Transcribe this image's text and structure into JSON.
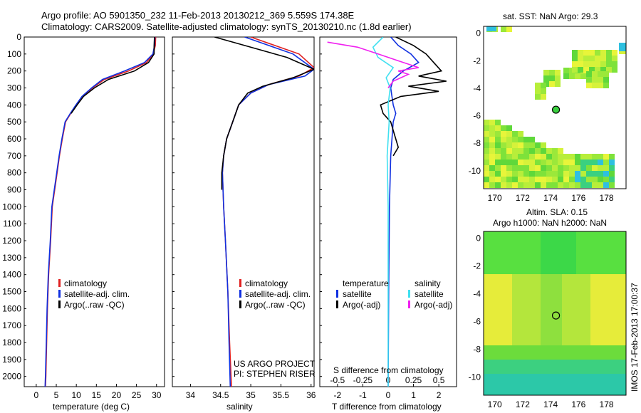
{
  "header": {
    "line1": "Argo profile: AO 5901350_232 11-Feb-2013 20130212_369 5.559S 174.38E",
    "line2": "Climatology: CARS2009. Satellite-adjusted climatology: synTS_20130210.nc (1.8d earlier)"
  },
  "colors": {
    "climatology": "#e02020",
    "satellite": "#1030e0",
    "argo": "#000000",
    "satellite_salinity": "#40e0f0",
    "argo_salinity": "#f020f0"
  },
  "chart_data": [
    {
      "type": "line",
      "panel": "temperature",
      "xlabel": "temperature (deg C)",
      "x_ticks": [
        0,
        5,
        10,
        15,
        20,
        25,
        30
      ],
      "xlim": [
        -3,
        32
      ],
      "ylim": [
        2060,
        0
      ],
      "y_ticks": [
        0,
        100,
        200,
        300,
        400,
        500,
        600,
        700,
        800,
        900,
        1000,
        1100,
        1200,
        1300,
        1400,
        1500,
        1600,
        1700,
        1800,
        1900,
        2000
      ],
      "legend": [
        "climatology",
        "satellite-adj. clim.",
        "Argo(..raw -QC)"
      ],
      "series": [
        {
          "name": "climatology",
          "color": "climatology",
          "x": [
            29.8,
            29.7,
            29.2,
            27.5,
            23.0,
            17.0,
            14.0,
            11.5,
            10.0,
            8.6,
            7.3,
            6.5,
            5.8,
            5.2,
            4.6,
            4.0,
            3.6,
            3.1,
            2.8,
            2.6,
            2.4,
            2.3
          ],
          "y": [
            0,
            50,
            100,
            150,
            200,
            250,
            300,
            350,
            400,
            450,
            500,
            600,
            700,
            800,
            900,
            1000,
            1200,
            1400,
            1600,
            1800,
            2000,
            2060
          ]
        },
        {
          "name": "satellite-adj. clim.",
          "color": "satellite",
          "x": [
            29.6,
            29.5,
            29.1,
            27.0,
            22.0,
            16.5,
            13.8,
            11.4,
            9.9,
            8.5,
            7.2,
            6.4,
            5.7,
            5.1,
            4.5,
            3.9,
            3.5,
            3.0,
            2.7,
            2.5,
            2.3,
            2.2
          ],
          "y": [
            0,
            50,
            100,
            150,
            200,
            250,
            300,
            350,
            400,
            450,
            500,
            600,
            700,
            800,
            900,
            1000,
            1200,
            1400,
            1600,
            1800,
            2000,
            2060
          ]
        },
        {
          "name": "Argo(..raw -QC)",
          "color": "argo",
          "x": [
            29.5,
            29.4,
            29.4,
            28.0,
            24.5,
            18.0,
            14.5,
            11.8,
            10.2,
            8.7
          ],
          "y": [
            0,
            50,
            100,
            150,
            200,
            250,
            300,
            350,
            400,
            450
          ]
        }
      ]
    },
    {
      "type": "line",
      "panel": "salinity",
      "xlabel": "salinity",
      "x_ticks": [
        34,
        34.5,
        35,
        35.5,
        36
      ],
      "xlim": [
        33.7,
        36.05
      ],
      "ylim": [
        2060,
        0
      ],
      "legend": [
        "climatology",
        "satellite-adj. clim.",
        "Argo(..raw -QC)"
      ],
      "annotation": [
        "US ARGO PROJECT",
        "PI: STEPHEN RISER"
      ],
      "series": [
        {
          "name": "climatology",
          "color": "climatology",
          "x": [
            35.0,
            35.4,
            35.8,
            36.05,
            35.8,
            35.3,
            35.0,
            34.8,
            34.7,
            34.6,
            34.55,
            34.53,
            34.55,
            34.58,
            34.62,
            34.65,
            34.68
          ],
          "y": [
            0,
            50,
            100,
            180,
            230,
            280,
            330,
            400,
            500,
            600,
            700,
            800,
            1000,
            1200,
            1500,
            1800,
            2060
          ]
        },
        {
          "name": "satellite-adj. clim.",
          "color": "satellite",
          "x": [
            34.9,
            35.3,
            35.7,
            36.05,
            35.9,
            35.3,
            35.0,
            34.8,
            34.7,
            34.6,
            34.55,
            34.53,
            34.55,
            34.58,
            34.62,
            34.64,
            34.66
          ],
          "y": [
            0,
            50,
            100,
            190,
            230,
            280,
            330,
            400,
            500,
            600,
            700,
            800,
            1000,
            1200,
            1500,
            1800,
            2060
          ]
        },
        {
          "name": "Argo(..raw -QC)",
          "color": "argo",
          "x": [
            34.4,
            34.9,
            35.6,
            36.05,
            35.7,
            35.2,
            34.95,
            34.8,
            34.7,
            34.6,
            34.55,
            34.52,
            34.52
          ],
          "y": [
            0,
            50,
            120,
            190,
            240,
            290,
            330,
            400,
            500,
            600,
            700,
            800,
            900
          ]
        }
      ]
    },
    {
      "type": "line",
      "panel": "difference",
      "xlabel": "T difference from climatology",
      "top_label": "S difference from climatology",
      "x_ticks": [
        -2,
        -1,
        0,
        1,
        2
      ],
      "top_ticks": [
        "-0.5",
        "-0.25",
        "0",
        "0.25",
        "0.5"
      ],
      "top_tick_values": [
        -0.5,
        -0.25,
        0,
        0.25,
        0.5
      ],
      "xlim": [
        -2.7,
        2.7
      ],
      "ylim": [
        2060,
        0
      ],
      "legend_titles": [
        "temperature",
        "salinity"
      ],
      "legend": [
        "satellite",
        "Argo(-adj)",
        "satellite",
        "Argo(-adj)"
      ],
      "series": [
        {
          "name": "satellite",
          "quantity": "temperature",
          "color": "satellite",
          "x": [
            0.1,
            0.4,
            0.9,
            1.2,
            0.6,
            0.2,
            0.1,
            0.15,
            0.2,
            0.3,
            0.2,
            0.1,
            0.05,
            0.02,
            0
          ],
          "y": [
            0,
            50,
            100,
            150,
            200,
            250,
            300,
            350,
            400,
            450,
            500,
            700,
            1000,
            1500,
            2060
          ]
        },
        {
          "name": "Argo(-adj)",
          "quantity": "temperature",
          "color": "argo",
          "x": [
            0.3,
            1.0,
            1.5,
            1.8,
            2.1,
            1.2,
            2.3,
            0.8,
            2.0,
            0.5,
            -0.3,
            -0.2,
            0.1,
            0.2,
            0.4,
            0.2
          ],
          "y": [
            0,
            50,
            100,
            150,
            200,
            230,
            260,
            290,
            320,
            350,
            400,
            450,
            500,
            550,
            650,
            700
          ]
        },
        {
          "name": "satellite",
          "quantity": "salinity",
          "color": "satellite_salinity",
          "x": [
            -0.05,
            -0.15,
            -0.1,
            0.05,
            -0.02,
            0.02,
            0.0,
            0.01,
            -0.01,
            0,
            0
          ],
          "y": [
            0,
            60,
            120,
            180,
            240,
            300,
            400,
            500,
            700,
            1000,
            2060
          ]
        },
        {
          "name": "Argo(-adj)",
          "quantity": "salinity",
          "color": "argo_salinity",
          "x": [
            -0.6,
            -0.3,
            -0.1,
            0.1,
            0.3,
            0.1,
            0.2,
            0.05,
            0.0
          ],
          "y": [
            30,
            60,
            100,
            140,
            180,
            200,
            220,
            260,
            300
          ]
        }
      ]
    },
    {
      "type": "heatmap",
      "panel": "sst-map",
      "title": "sat. SST: NaN Argo: 29.3",
      "x_ticks": [
        170,
        172,
        174,
        176,
        178
      ],
      "y_ticks": [
        0,
        -2,
        -4,
        -6,
        -8,
        -10
      ],
      "xlim": [
        169.2,
        179.4
      ],
      "ylim": [
        -11.3,
        0.5
      ],
      "argo_position": [
        174.38,
        -5.559
      ]
    },
    {
      "type": "heatmap",
      "panel": "sla-map",
      "title": "Altim. SLA: 0.15",
      "subtitle": "Argo h1000: NaN h2000: NaN",
      "x_ticks": [
        170,
        172,
        174,
        176,
        178
      ],
      "y_ticks": [
        0,
        -2,
        -4,
        -6,
        -8,
        -10
      ],
      "xlim": [
        169.2,
        179.4
      ],
      "ylim": [
        -11.3,
        0.5
      ],
      "argo_position": [
        174.38,
        -5.559
      ]
    }
  ],
  "footer_stamp": "IMOS 17-Feb-2013 17:00:37"
}
